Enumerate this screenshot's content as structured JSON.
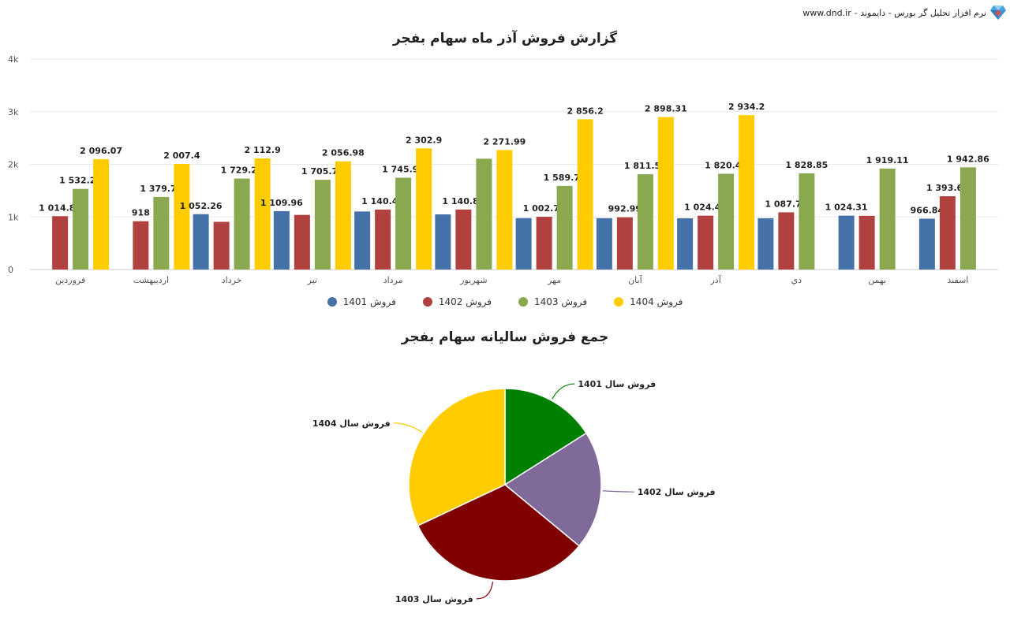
{
  "brand": {
    "text": "نرم افزار تحلیل گر بورس - دایموند -",
    "url": "www.dnd.ir",
    "icon": "diamond-icon"
  },
  "chart_data": [
    {
      "type": "bar",
      "title": "گزارش فروش آذر ماه سهام بفجر",
      "categories": [
        "فروردین",
        "اردیبهشت",
        "خرداد",
        "تیر",
        "مرداد",
        "شهریور",
        "مهر",
        "آبان",
        "آذر",
        "دي",
        "بهمن",
        "اسفند"
      ],
      "ylim": [
        0,
        4000
      ],
      "yticks": [
        "0",
        "1k",
        "2k",
        "3k",
        "4k"
      ],
      "grid": true,
      "legend_position": "bottom",
      "series": [
        {
          "name": "فروش 1401",
          "color": "#4472a8",
          "values": [
            null,
            null,
            1052.26,
            1109.96,
            1103.5,
            1048.2,
            977.4,
            976.3,
            973.8,
            975.1,
            1024.31,
            966.84
          ],
          "labels": [
            null,
            null,
            "1 052.26",
            "1 109.96",
            null,
            null,
            null,
            null,
            null,
            null,
            "1 024.31",
            "966.84"
          ]
        },
        {
          "name": "فروش 1402",
          "color": "#b0413e",
          "values": [
            1014.89,
            918,
            906.4,
            1038.5,
            1140.47,
            1140.82,
            1002.76,
            992.99,
            1024.43,
            1087.74,
            1021.6,
            1393.64
          ],
          "labels": [
            "1 014.89",
            "918",
            null,
            null,
            "1 140.47",
            "1 140.82",
            "1 002.76",
            "992.99",
            "1 024.43",
            "1 087.74",
            null,
            "1 393.64"
          ]
        },
        {
          "name": "فروش 1403",
          "color": "#8aa84f",
          "values": [
            1532.27,
            1379.79,
            1729.28,
            1705.76,
            1745.94,
            2106.5,
            1589.72,
            1811.55,
            1820.43,
            1828.85,
            1919.11,
            1942.86
          ],
          "labels": [
            "1 532.27",
            "1 379.79",
            "1 729.28",
            "1 705.76",
            "1 745.94",
            null,
            "1 589.72",
            "1 811.55",
            "1 820.43",
            "1 828.85",
            "1 919.11",
            "1 942.86"
          ]
        },
        {
          "name": "فروش 1404",
          "color": "#ffcc00",
          "values": [
            2096.07,
            2007.4,
            2112.9,
            2056.98,
            2302.9,
            2271.99,
            2856.2,
            2898.31,
            2934.2,
            null,
            null,
            null
          ],
          "labels": [
            "2 096.07",
            "2 007.4",
            "2 112.9",
            "2 056.98",
            "2 302.9",
            "2 271.99",
            "2 856.2",
            "2 898.31",
            "2 934.2",
            null,
            null,
            null
          ]
        }
      ]
    },
    {
      "type": "pie",
      "title": "جمع فروش سالیانه سهام بفجر",
      "slices": [
        {
          "label": "فروش سال 1401",
          "value": 16,
          "color": "#008000"
        },
        {
          "label": "فروش سال 1402",
          "value": 20,
          "color": "#806a9a"
        },
        {
          "label": "فروش سال 1403",
          "value": 32,
          "color": "#800000"
        },
        {
          "label": "فروش سال 1404",
          "value": 32,
          "color": "#ffcc00"
        }
      ]
    }
  ]
}
